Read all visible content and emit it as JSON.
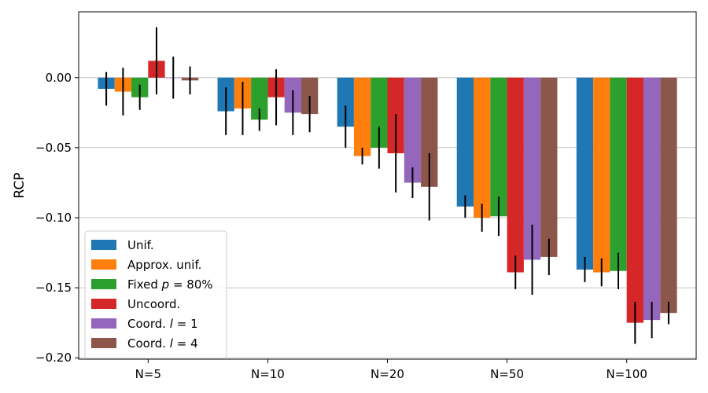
{
  "chart_data": {
    "type": "bar",
    "xlabel": "",
    "ylabel": "RCP",
    "ylim": [
      -0.201,
      0.047
    ],
    "yticks": [
      0.0,
      -0.05,
      -0.1,
      -0.15,
      -0.2
    ],
    "ytick_labels": [
      "0.00",
      "−0.05",
      "−0.10",
      "−0.15",
      "−0.20"
    ],
    "grid": "horizontal",
    "legend_position": "lower-left",
    "categories": [
      "N=5",
      "N=10",
      "N=20",
      "N=50",
      "N=100"
    ],
    "series": [
      {
        "name": "Unif.",
        "legend_parts": [
          {
            "t": "Unif.",
            "i": false
          }
        ],
        "color": "#1f77b4",
        "values": [
          -0.008,
          -0.024,
          -0.035,
          -0.092,
          -0.137
        ],
        "errors": [
          0.012,
          0.017,
          0.015,
          0.008,
          0.009
        ]
      },
      {
        "name": "Approx. unif.",
        "legend_parts": [
          {
            "t": "Approx. unif.",
            "i": false
          }
        ],
        "color": "#ff7f0e",
        "values": [
          -0.01,
          -0.022,
          -0.056,
          -0.1,
          -0.139
        ],
        "errors": [
          0.017,
          0.019,
          0.006,
          0.01,
          0.01
        ]
      },
      {
        "name": "Fixed p = 80%",
        "legend_parts": [
          {
            "t": "Fixed ",
            "i": false
          },
          {
            "t": "p",
            "i": true
          },
          {
            "t": " = 80%",
            "i": false
          }
        ],
        "color": "#2ca02c",
        "values": [
          -0.014,
          -0.03,
          -0.05,
          -0.099,
          -0.138
        ],
        "errors": [
          0.009,
          0.008,
          0.015,
          0.014,
          0.013
        ]
      },
      {
        "name": "Uncoord.",
        "legend_parts": [
          {
            "t": "Uncoord.",
            "i": false
          }
        ],
        "color": "#d62728",
        "values": [
          0.012,
          -0.014,
          -0.054,
          -0.139,
          -0.175
        ],
        "errors": [
          0.024,
          0.02,
          0.028,
          0.012,
          0.015
        ]
      },
      {
        "name": "Coord. l = 1",
        "legend_parts": [
          {
            "t": "Coord. ",
            "i": false
          },
          {
            "t": "l",
            "i": true
          },
          {
            "t": " = 1",
            "i": false
          }
        ],
        "color": "#9467bd",
        "values": [
          0.0,
          -0.025,
          -0.075,
          -0.13,
          -0.173
        ],
        "errors": [
          0.015,
          0.016,
          0.011,
          0.025,
          0.013
        ]
      },
      {
        "name": "Coord. l = 4",
        "legend_parts": [
          {
            "t": "Coord. ",
            "i": false
          },
          {
            "t": "l",
            "i": true
          },
          {
            "t": " = 4",
            "i": false
          }
        ],
        "color": "#8c564b",
        "values": [
          -0.002,
          -0.026,
          -0.078,
          -0.128,
          -0.168
        ],
        "errors": [
          0.01,
          0.013,
          0.024,
          0.013,
          0.008
        ]
      }
    ]
  }
}
